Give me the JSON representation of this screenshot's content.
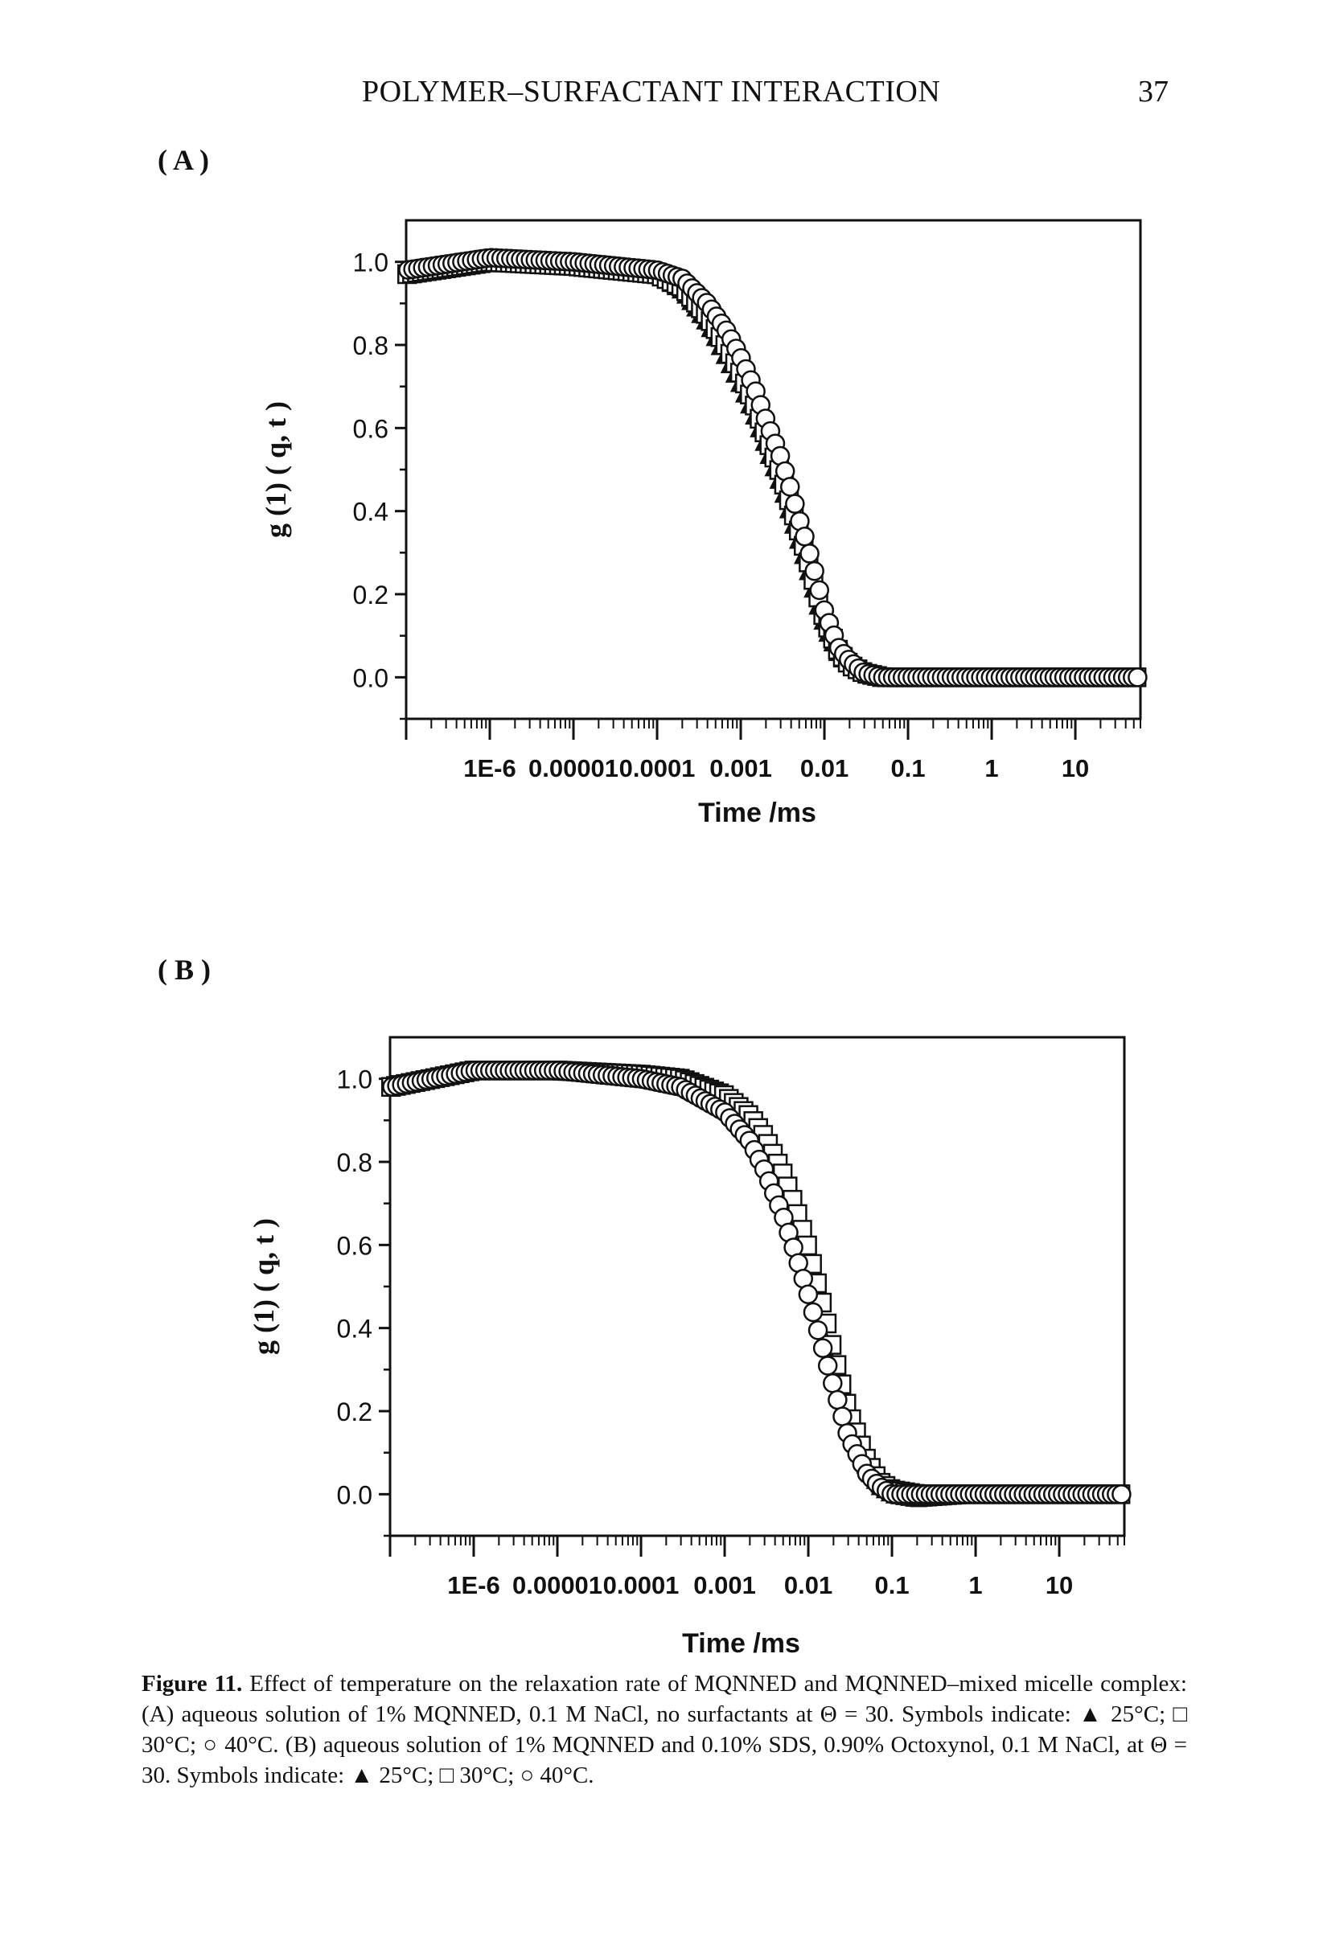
{
  "header": {
    "running_title": "POLYMER–SURFACTANT INTERACTION",
    "page_number": "37"
  },
  "panels": {
    "a_label": "( A )",
    "b_label": "( B )"
  },
  "caption": {
    "lead": "Figure 11.",
    "text": "Effect of temperature on the relaxation rate of MQNNED and MQNNED–mixed micelle complex: (A) aqueous solution of 1% MQNNED, 0.1 M NaCl, no surfactants at Θ = 30. Symbols indicate: ▲ 25°C; □ 30°C; ○ 40°C. (B) aqueous solution of 1% MQNNED and 0.10% SDS, 0.90% Octoxynol, 0.1 M NaCl, at Θ = 30. Symbols indicate: ▲ 25°C; □ 30°C; ○ 40°C."
  },
  "chart_data": [
    {
      "type": "scatter",
      "panel": "A",
      "xlabel": "Time /ms",
      "ylabel": "g (1) ( q, t )",
      "x_scale": "log",
      "xlim": [
        1e-07,
        60
      ],
      "ylim": [
        -0.1,
        1.1
      ],
      "x_ticks": [
        "1E-6",
        "0.00001",
        "0.0001",
        "0.001",
        "0.01",
        "0.1",
        "1",
        "10"
      ],
      "y_ticks": [
        "0.0",
        "0.2",
        "0.4",
        "0.6",
        "0.8",
        "1.0"
      ],
      "series": [
        {
          "name": "25°C",
          "marker": "triangle",
          "x": [
            1e-07,
            1e-06,
            1e-05,
            0.0001,
            0.0002,
            0.0004,
            0.0007,
            0.001,
            0.0015,
            0.002,
            0.003,
            0.004,
            0.005,
            0.006,
            0.008,
            0.01,
            0.015,
            0.02,
            0.03,
            0.05,
            0.1,
            1,
            10,
            50
          ],
          "y": [
            0.97,
            1.0,
            1.0,
            0.97,
            0.93,
            0.85,
            0.76,
            0.7,
            0.62,
            0.55,
            0.46,
            0.38,
            0.32,
            0.27,
            0.18,
            0.12,
            0.05,
            0.03,
            0.01,
            0.0,
            0.0,
            0.0,
            0.0,
            0.0
          ]
        },
        {
          "name": "30°C",
          "marker": "square",
          "x": [
            1e-07,
            1e-06,
            1e-05,
            0.0001,
            0.0002,
            0.0004,
            0.0007,
            0.001,
            0.0015,
            0.002,
            0.003,
            0.004,
            0.005,
            0.006,
            0.008,
            0.01,
            0.015,
            0.02,
            0.03,
            0.05,
            0.1,
            1,
            10,
            50
          ],
          "y": [
            0.97,
            1.0,
            0.99,
            0.97,
            0.94,
            0.87,
            0.79,
            0.73,
            0.65,
            0.58,
            0.49,
            0.41,
            0.35,
            0.3,
            0.21,
            0.14,
            0.06,
            0.03,
            0.01,
            0.0,
            0.0,
            0.0,
            0.0,
            0.0
          ]
        },
        {
          "name": "40°C",
          "marker": "circle",
          "x": [
            1e-07,
            1e-06,
            1e-05,
            0.0001,
            0.0002,
            0.0004,
            0.0007,
            0.001,
            0.0015,
            0.002,
            0.003,
            0.004,
            0.005,
            0.006,
            0.008,
            0.01,
            0.015,
            0.02,
            0.03,
            0.05,
            0.1,
            1,
            10,
            50
          ],
          "y": [
            0.98,
            1.01,
            1.0,
            0.98,
            0.96,
            0.9,
            0.83,
            0.77,
            0.69,
            0.62,
            0.53,
            0.45,
            0.38,
            0.33,
            0.24,
            0.16,
            0.07,
            0.04,
            0.01,
            0.0,
            0.0,
            0.0,
            0.0,
            0.0
          ]
        }
      ]
    },
    {
      "type": "scatter",
      "panel": "B",
      "xlabel": "Time /ms",
      "ylabel": "g (1) ( q, t )",
      "x_scale": "log",
      "xlim": [
        1e-07,
        60
      ],
      "ylim": [
        -0.1,
        1.1
      ],
      "x_ticks": [
        "1E-6",
        "0.00001",
        "0.0001",
        "0.001",
        "0.01",
        "0.1",
        "1",
        "10"
      ],
      "y_ticks": [
        "0.0",
        "0.2",
        "0.4",
        "0.6",
        "0.8",
        "1.0"
      ],
      "series": [
        {
          "name": "25°C",
          "marker": "triangle",
          "x": [
            1e-07,
            1e-06,
            1e-05,
            0.0001,
            0.0003,
            0.001,
            0.002,
            0.003,
            0.005,
            0.007,
            0.01,
            0.015,
            0.02,
            0.03,
            0.05,
            0.07,
            0.1,
            0.2,
            1,
            10,
            50
          ],
          "y": [
            0.98,
            1.02,
            1.02,
            1.01,
            0.99,
            0.94,
            0.88,
            0.82,
            0.72,
            0.64,
            0.54,
            0.4,
            0.3,
            0.17,
            0.06,
            0.02,
            0.0,
            -0.01,
            0.0,
            0.0,
            0.0
          ]
        },
        {
          "name": "30°C",
          "marker": "square",
          "x": [
            1e-07,
            1e-06,
            1e-05,
            0.0001,
            0.0003,
            0.001,
            0.002,
            0.003,
            0.005,
            0.007,
            0.01,
            0.015,
            0.02,
            0.03,
            0.05,
            0.07,
            0.1,
            0.2,
            1,
            10,
            50
          ],
          "y": [
            0.98,
            1.02,
            1.02,
            1.01,
            1.0,
            0.96,
            0.91,
            0.86,
            0.77,
            0.69,
            0.59,
            0.45,
            0.34,
            0.2,
            0.08,
            0.03,
            0.01,
            0.0,
            0.0,
            0.0,
            0.0
          ]
        },
        {
          "name": "40°C",
          "marker": "circle",
          "x": [
            1e-07,
            1e-06,
            1e-05,
            0.0001,
            0.0003,
            0.001,
            0.002,
            0.003,
            0.005,
            0.007,
            0.01,
            0.015,
            0.02,
            0.03,
            0.05,
            0.07,
            0.1,
            0.2,
            1,
            10,
            50
          ],
          "y": [
            0.98,
            1.02,
            1.02,
            1.0,
            0.98,
            0.92,
            0.85,
            0.78,
            0.67,
            0.58,
            0.48,
            0.35,
            0.26,
            0.14,
            0.05,
            0.02,
            0.0,
            0.0,
            0.0,
            0.0,
            0.0
          ]
        }
      ]
    }
  ]
}
